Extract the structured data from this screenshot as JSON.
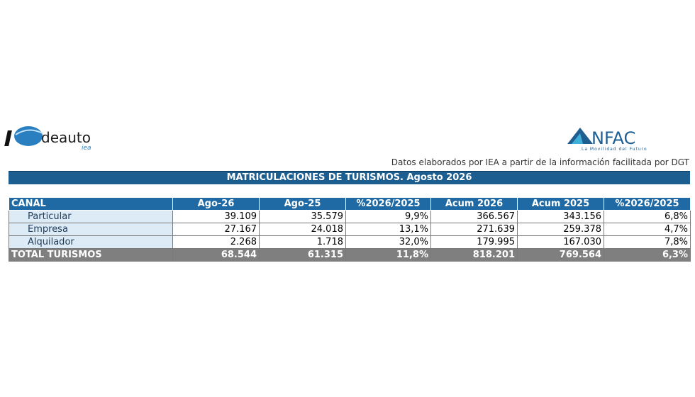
{
  "logos": {
    "left": {
      "name": "deauto",
      "tagline": "iea"
    },
    "right": {
      "name": "NFAC",
      "tagline": "La Movilidad del Futuro"
    }
  },
  "source_note": "Datos elaborados por IEA a partir de la información facilitada por DGT",
  "title": "MATRICULACIONES DE TURISMOS. Agosto 2026",
  "table": {
    "header": [
      "CANAL",
      "Ago-26",
      "Ago-25",
      "%2026/2025",
      "Acum 2026",
      "Acum 2025",
      "%2026/2025"
    ],
    "rows": [
      [
        "Particular",
        "39.109",
        "35.579",
        "9,9%",
        "366.567",
        "343.156",
        "6,8%"
      ],
      [
        "Empresa",
        "27.167",
        "24.018",
        "13,1%",
        "271.639",
        "259.378",
        "4,7%"
      ],
      [
        "Alquilador",
        "2.268",
        "1.718",
        "32,0%",
        "179.995",
        "167.030",
        "7,8%"
      ]
    ],
    "total": [
      "TOTAL TURISMOS",
      "68.544",
      "61.315",
      "11,8%",
      "818.201",
      "769.564",
      "6,3%"
    ]
  }
}
